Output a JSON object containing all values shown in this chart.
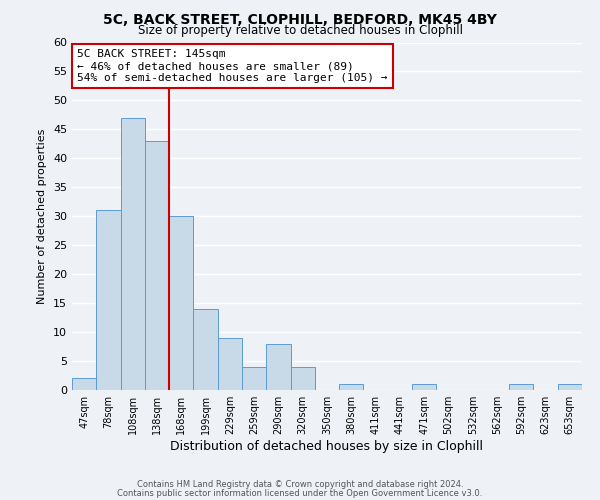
{
  "title_line1": "5C, BACK STREET, CLOPHILL, BEDFORD, MK45 4BY",
  "title_line2": "Size of property relative to detached houses in Clophill",
  "xlabel": "Distribution of detached houses by size in Clophill",
  "ylabel": "Number of detached properties",
  "bar_labels": [
    "47sqm",
    "78sqm",
    "108sqm",
    "138sqm",
    "168sqm",
    "199sqm",
    "229sqm",
    "259sqm",
    "290sqm",
    "320sqm",
    "350sqm",
    "380sqm",
    "411sqm",
    "441sqm",
    "471sqm",
    "502sqm",
    "532sqm",
    "562sqm",
    "592sqm",
    "623sqm",
    "653sqm"
  ],
  "bar_heights": [
    2,
    31,
    47,
    43,
    30,
    14,
    9,
    4,
    8,
    4,
    0,
    1,
    0,
    0,
    1,
    0,
    0,
    0,
    1,
    0,
    1
  ],
  "bar_color": "#c8d9e8",
  "bar_edge_color": "#5b9bd5",
  "vline_color": "#cc0000",
  "annotation_title": "5C BACK STREET: 145sqm",
  "annotation_line1": "← 46% of detached houses are smaller (89)",
  "annotation_line2": "54% of semi-detached houses are larger (105) →",
  "annotation_box_edge": "#cc0000",
  "ylim": [
    0,
    60
  ],
  "yticks": [
    0,
    5,
    10,
    15,
    20,
    25,
    30,
    35,
    40,
    45,
    50,
    55,
    60
  ],
  "footer_line1": "Contains HM Land Registry data © Crown copyright and database right 2024.",
  "footer_line2": "Contains public sector information licensed under the Open Government Licence v3.0.",
  "background_color": "#eef2f7"
}
